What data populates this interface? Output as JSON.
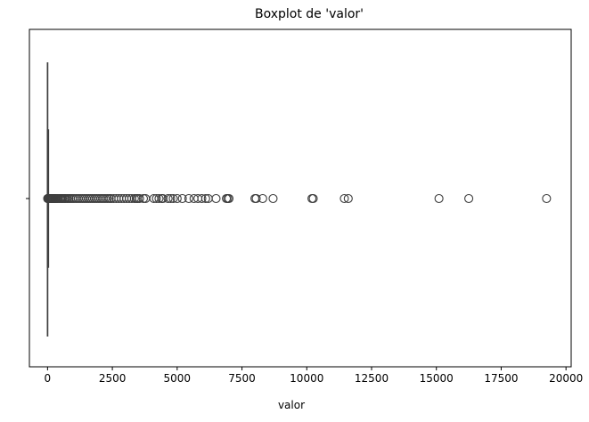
{
  "chart_data": {
    "type": "boxplot",
    "orientation": "horizontal",
    "title": "Boxplot de 'valor'",
    "xlabel": "valor",
    "ylabel": "",
    "xlim": [
      -700,
      20200
    ],
    "xticks": [
      0,
      2500,
      5000,
      7500,
      10000,
      12500,
      15000,
      17500,
      20000
    ],
    "xtick_labels": [
      "0",
      "2500",
      "5000",
      "7500",
      "10000",
      "12500",
      "15000",
      "17500",
      "20000"
    ],
    "ytick_labels": [
      ""
    ],
    "grid": false,
    "box": {
      "min": 0,
      "q1": 0,
      "median": 0,
      "q3": 1,
      "max": 2,
      "whisker_low": 0,
      "whisker_high": 2
    },
    "outliers": [
      5,
      10,
      15,
      20,
      25,
      30,
      40,
      50,
      60,
      70,
      80,
      90,
      100,
      120,
      140,
      160,
      180,
      200,
      230,
      260,
      290,
      320,
      360,
      400,
      450,
      500,
      550,
      600,
      650,
      700,
      760,
      820,
      880,
      950,
      1020,
      1100,
      1180,
      1260,
      1340,
      1420,
      1500,
      1580,
      1660,
      1740,
      1820,
      1900,
      1980,
      2060,
      2140,
      2220,
      2300,
      2380,
      2450,
      2550,
      2650,
      2750,
      2850,
      2950,
      3050,
      3150,
      3250,
      3350,
      3420,
      3480,
      3550,
      3700,
      3780,
      4100,
      4200,
      4300,
      4400,
      4450,
      4650,
      4750,
      4850,
      5000,
      5200,
      5450,
      5650,
      5800,
      5950,
      6100,
      6200,
      6500,
      6900,
      6950,
      7000,
      8000,
      8050,
      8300,
      8700,
      10200,
      10250,
      11450,
      11600,
      15100,
      16250,
      19250
    ],
    "colors": {
      "box_edge": "#3f3f3f",
      "whisker": "#3f3f3f",
      "outlier_edge": "#3f3f3f",
      "outlier_fill": "none",
      "axes": "#000000",
      "text": "#000000"
    }
  }
}
